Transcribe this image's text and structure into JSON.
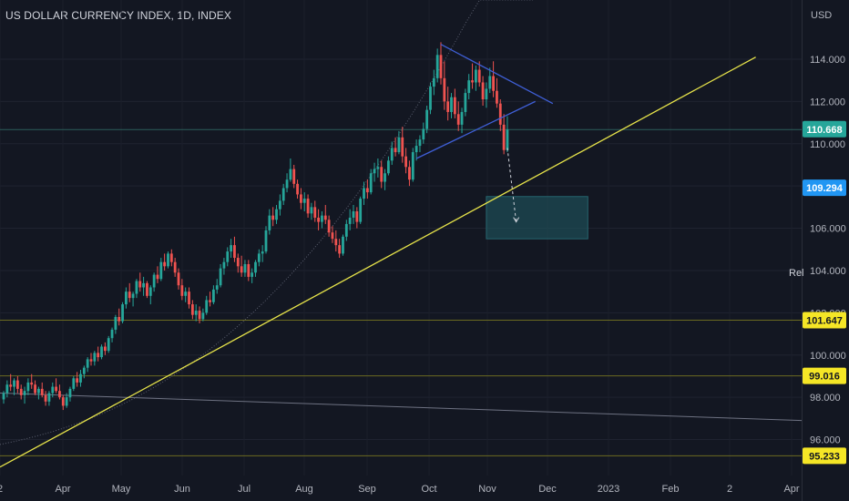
{
  "header": {
    "title": "US DOLLAR CURRENCY INDEX, 1D, INDEX"
  },
  "price_scale": {
    "currency": "USD",
    "ticks": [
      "114.000",
      "112.000",
      "110.000",
      "108.000",
      "106.000",
      "104.000",
      "102.000",
      "100.000",
      "98.000",
      "96.000"
    ]
  },
  "time_scale": {
    "labels": [
      "2",
      "Apr",
      "May",
      "Jun",
      "Jul",
      "Aug",
      "Sep",
      "Oct",
      "Nov",
      "Dec",
      "2023",
      "Feb",
      "2",
      "Apr"
    ]
  },
  "badges": {
    "last_price": "110.668",
    "second_price": "109.294",
    "level_1": "101.647",
    "level_2": "99.016",
    "level_3": "95.233"
  },
  "side_label": "Rel",
  "colors": {
    "background": "#131722",
    "up": "#26a69a",
    "down": "#ef5350",
    "trendline": "#e6e34a",
    "triangle": "#3f5fd6",
    "projection_box": "#1e4f57",
    "last_price_badge": "#26a69a",
    "second_badge": "#2196f3",
    "level_badge": "#f5e626"
  },
  "chart_data": {
    "type": "candlestick",
    "title": "US DOLLAR CURRENCY INDEX, 1D, INDEX",
    "interval": "1D",
    "ylabel": "USD",
    "ylim": [
      94.3,
      116.8
    ],
    "last_price": 110.668,
    "series": [
      {
        "name": "DXY",
        "ohlc": [
          [
            97.9,
            98.3,
            97.7,
            98.2
          ],
          [
            98.2,
            98.8,
            98.0,
            98.6
          ],
          [
            98.6,
            99.1,
            98.3,
            98.5
          ],
          [
            98.5,
            98.9,
            98.1,
            98.8
          ],
          [
            98.8,
            99.0,
            98.2,
            98.4
          ],
          [
            98.4,
            98.6,
            97.9,
            98.1
          ],
          [
            98.1,
            98.5,
            97.7,
            98.3
          ],
          [
            98.3,
            98.9,
            98.1,
            98.7
          ],
          [
            98.7,
            99.1,
            98.4,
            98.6
          ],
          [
            98.6,
            98.8,
            98.1,
            98.2
          ],
          [
            98.2,
            98.5,
            97.9,
            98.4
          ],
          [
            98.4,
            98.7,
            98.0,
            98.1
          ],
          [
            98.1,
            98.3,
            97.6,
            97.8
          ],
          [
            97.8,
            98.3,
            97.6,
            98.2
          ],
          [
            98.2,
            98.7,
            98.0,
            98.5
          ],
          [
            98.5,
            98.9,
            98.2,
            98.3
          ],
          [
            98.3,
            98.6,
            97.9,
            98.0
          ],
          [
            98.0,
            98.1,
            97.4,
            97.6
          ],
          [
            97.6,
            98.2,
            97.5,
            98.0
          ],
          [
            98.0,
            98.5,
            97.8,
            98.4
          ],
          [
            98.4,
            99.0,
            98.3,
            98.9
          ],
          [
            98.9,
            99.2,
            98.5,
            98.7
          ],
          [
            98.7,
            99.3,
            98.5,
            99.1
          ],
          [
            99.1,
            99.5,
            98.9,
            99.4
          ],
          [
            99.4,
            99.9,
            99.2,
            99.8
          ],
          [
            99.8,
            100.1,
            99.5,
            99.7
          ],
          [
            99.7,
            100.2,
            99.5,
            100.1
          ],
          [
            100.1,
            100.4,
            99.7,
            99.9
          ],
          [
            99.9,
            100.5,
            99.8,
            100.4
          ],
          [
            100.4,
            100.6,
            100.0,
            100.2
          ],
          [
            100.2,
            100.9,
            100.1,
            100.8
          ],
          [
            100.8,
            101.3,
            100.6,
            101.2
          ],
          [
            101.2,
            101.9,
            101.0,
            101.8
          ],
          [
            101.8,
            102.2,
            101.4,
            101.6
          ],
          [
            101.6,
            102.5,
            101.5,
            102.4
          ],
          [
            102.4,
            103.2,
            102.2,
            103.0
          ],
          [
            103.0,
            103.4,
            102.5,
            102.7
          ],
          [
            102.7,
            103.0,
            102.3,
            102.9
          ],
          [
            102.9,
            103.6,
            102.7,
            103.5
          ],
          [
            103.5,
            103.9,
            103.0,
            103.2
          ],
          [
            103.2,
            103.7,
            102.8,
            103.4
          ],
          [
            103.4,
            103.5,
            102.7,
            102.8
          ],
          [
            102.8,
            103.3,
            102.4,
            103.2
          ],
          [
            103.2,
            103.9,
            103.0,
            103.8
          ],
          [
            103.8,
            104.2,
            103.4,
            103.6
          ],
          [
            103.6,
            104.6,
            103.5,
            104.4
          ],
          [
            104.4,
            104.8,
            104.0,
            104.2
          ],
          [
            104.2,
            104.9,
            104.1,
            104.8
          ],
          [
            104.8,
            105.0,
            104.2,
            104.4
          ],
          [
            104.4,
            104.6,
            103.7,
            103.9
          ],
          [
            103.9,
            104.1,
            103.1,
            103.3
          ],
          [
            103.3,
            103.6,
            102.6,
            102.8
          ],
          [
            102.8,
            103.2,
            102.5,
            103.0
          ],
          [
            103.0,
            103.2,
            102.2,
            102.4
          ],
          [
            102.4,
            102.6,
            101.7,
            101.9
          ],
          [
            101.9,
            102.4,
            101.6,
            102.1
          ],
          [
            102.1,
            102.3,
            101.5,
            101.7
          ],
          [
            101.7,
            102.2,
            101.6,
            102.0
          ],
          [
            102.0,
            102.8,
            101.9,
            102.6
          ],
          [
            102.6,
            103.0,
            102.3,
            102.5
          ],
          [
            102.5,
            103.3,
            102.4,
            103.1
          ],
          [
            103.1,
            103.6,
            102.9,
            103.3
          ],
          [
            103.3,
            104.3,
            103.2,
            104.1
          ],
          [
            104.1,
            104.6,
            103.8,
            104.4
          ],
          [
            104.4,
            105.1,
            104.2,
            104.9
          ],
          [
            104.9,
            105.5,
            104.6,
            105.2
          ],
          [
            105.2,
            105.6,
            104.4,
            104.6
          ],
          [
            104.6,
            104.8,
            103.9,
            104.2
          ],
          [
            104.2,
            104.7,
            103.7,
            103.9
          ],
          [
            103.9,
            104.5,
            103.7,
            104.3
          ],
          [
            104.3,
            104.5,
            103.5,
            103.7
          ],
          [
            103.7,
            104.1,
            103.4,
            103.9
          ],
          [
            103.9,
            104.5,
            103.7,
            104.4
          ],
          [
            104.4,
            105.0,
            104.2,
            104.8
          ],
          [
            104.8,
            105.2,
            104.4,
            104.9
          ],
          [
            104.9,
            106.1,
            104.8,
            105.9
          ],
          [
            105.9,
            106.9,
            105.7,
            106.6
          ],
          [
            106.6,
            107.0,
            106.1,
            106.4
          ],
          [
            106.4,
            107.1,
            106.2,
            106.9
          ],
          [
            106.9,
            107.6,
            106.6,
            107.3
          ],
          [
            107.3,
            108.1,
            107.1,
            107.9
          ],
          [
            107.9,
            108.6,
            107.7,
            108.3
          ],
          [
            108.3,
            109.3,
            108.2,
            108.8
          ],
          [
            108.8,
            109.0,
            107.9,
            108.1
          ],
          [
            108.1,
            108.3,
            107.4,
            107.6
          ],
          [
            107.6,
            107.9,
            106.9,
            107.2
          ],
          [
            107.2,
            107.7,
            106.8,
            107.4
          ],
          [
            107.4,
            107.6,
            106.5,
            106.7
          ],
          [
            106.7,
            107.2,
            106.4,
            107.0
          ],
          [
            107.0,
            107.3,
            106.3,
            106.5
          ],
          [
            106.5,
            106.9,
            105.9,
            106.3
          ],
          [
            106.3,
            106.8,
            106.0,
            106.6
          ],
          [
            106.6,
            107.1,
            106.2,
            106.4
          ],
          [
            106.4,
            106.6,
            105.6,
            105.8
          ],
          [
            105.8,
            106.1,
            105.3,
            105.5
          ],
          [
            105.5,
            105.9,
            104.9,
            105.2
          ],
          [
            105.2,
            105.5,
            104.6,
            104.8
          ],
          [
            104.8,
            105.7,
            104.7,
            105.6
          ],
          [
            105.6,
            106.4,
            105.4,
            106.2
          ],
          [
            106.2,
            106.9,
            105.9,
            106.5
          ],
          [
            106.5,
            107.1,
            106.2,
            106.8
          ],
          [
            106.8,
            107.0,
            106.0,
            106.3
          ],
          [
            106.3,
            107.5,
            106.2,
            107.4
          ],
          [
            107.4,
            108.2,
            107.1,
            107.9
          ],
          [
            107.9,
            108.3,
            107.4,
            107.7
          ],
          [
            107.7,
            108.8,
            107.6,
            108.6
          ],
          [
            108.6,
            109.1,
            108.2,
            108.8
          ],
          [
            108.8,
            109.3,
            108.4,
            108.9
          ],
          [
            108.9,
            109.2,
            107.9,
            108.2
          ],
          [
            108.2,
            108.8,
            107.8,
            108.6
          ],
          [
            108.6,
            109.4,
            108.5,
            109.2
          ],
          [
            109.2,
            110.1,
            109.0,
            109.8
          ],
          [
            109.8,
            110.3,
            109.4,
            109.6
          ],
          [
            109.6,
            110.6,
            109.5,
            110.3
          ],
          [
            110.3,
            110.8,
            109.1,
            109.4
          ],
          [
            109.4,
            109.8,
            108.6,
            108.9
          ],
          [
            108.9,
            109.2,
            108.0,
            108.3
          ],
          [
            108.3,
            109.8,
            108.2,
            109.6
          ],
          [
            109.6,
            110.2,
            109.2,
            109.9
          ],
          [
            109.9,
            110.4,
            109.6,
            110.2
          ],
          [
            110.2,
            111.0,
            110.0,
            110.7
          ],
          [
            110.7,
            111.8,
            110.5,
            111.6
          ],
          [
            111.6,
            112.9,
            111.4,
            112.7
          ],
          [
            112.7,
            113.5,
            112.3,
            113.1
          ],
          [
            113.1,
            114.5,
            112.9,
            114.2
          ],
          [
            114.2,
            114.8,
            112.8,
            113.1
          ],
          [
            113.1,
            113.9,
            111.6,
            112.0
          ],
          [
            112.0,
            112.7,
            111.1,
            111.5
          ],
          [
            111.5,
            112.4,
            111.2,
            112.2
          ],
          [
            112.2,
            112.6,
            111.2,
            111.4
          ],
          [
            111.4,
            112.0,
            110.6,
            110.9
          ],
          [
            110.9,
            111.7,
            110.5,
            111.5
          ],
          [
            111.5,
            112.6,
            111.3,
            112.4
          ],
          [
            112.4,
            113.3,
            112.1,
            113.0
          ],
          [
            113.0,
            113.8,
            112.6,
            112.9
          ],
          [
            112.9,
            113.7,
            112.5,
            113.5
          ],
          [
            113.5,
            113.9,
            112.7,
            112.9
          ],
          [
            112.9,
            113.2,
            111.8,
            112.1
          ],
          [
            112.1,
            112.9,
            111.7,
            112.6
          ],
          [
            112.6,
            113.6,
            112.4,
            113.2
          ],
          [
            113.2,
            113.9,
            112.2,
            112.5
          ],
          [
            112.5,
            113.1,
            111.7,
            111.9
          ],
          [
            111.9,
            112.1,
            110.6,
            110.9
          ],
          [
            110.9,
            111.4,
            109.5,
            109.7
          ],
          [
            109.7,
            111.3,
            109.6,
            110.668
          ]
        ]
      }
    ],
    "annotations": [
      {
        "type": "trendline",
        "from": [
          0,
          94.7
        ],
        "to": [
          215,
          114.1
        ]
      },
      {
        "type": "triangle_upper",
        "from": [
          125,
          114.7
        ],
        "to": [
          157,
          111.9
        ]
      },
      {
        "type": "triangle_lower",
        "from": [
          118,
          109.3
        ],
        "to": [
          152,
          112.0
        ]
      },
      {
        "type": "horizontal_line",
        "value": 110.668
      },
      {
        "type": "horizontal_line",
        "value": 101.647
      },
      {
        "type": "horizontal_line",
        "value": 99.016
      },
      {
        "type": "horizontal_line",
        "value": 95.233
      },
      {
        "type": "projection_box",
        "y_range": [
          105.5,
          107.5
        ],
        "x_range": [
          138,
          167
        ]
      },
      {
        "type": "projected_path",
        "from": [
          144,
          109.8
        ],
        "to": [
          146,
          106.3
        ]
      }
    ]
  }
}
